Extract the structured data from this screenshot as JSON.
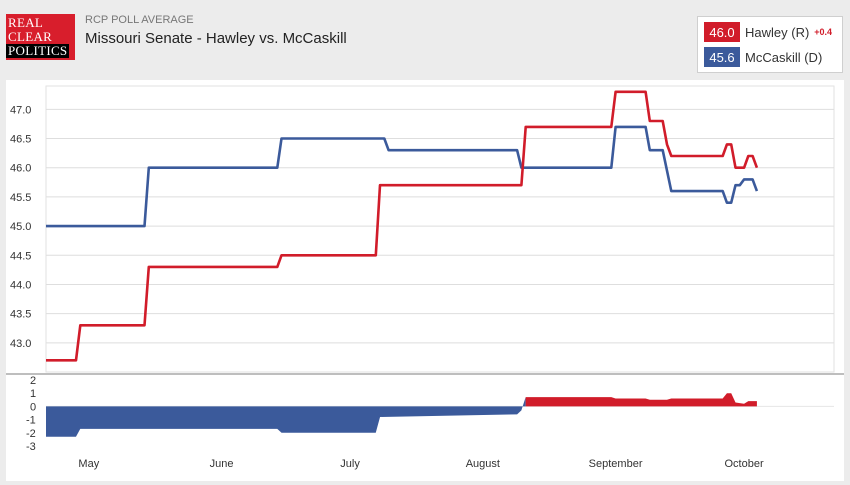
{
  "header": {
    "logo_lines": [
      "REAL",
      "CLEAR",
      "POLITICS"
    ],
    "kicker": "RCP POLL AVERAGE",
    "title": "Missouri Senate - Hawley vs. McCaskill"
  },
  "legend": {
    "items": [
      {
        "value": "46.0",
        "name": "Hawley (R)",
        "change": "+0.4",
        "color": "#d11c2a"
      },
      {
        "value": "45.6",
        "name": "McCaskill (D)",
        "change": "",
        "color": "#3b5a9b"
      }
    ]
  },
  "chart_data": [
    {
      "type": "line",
      "title": "",
      "x_unit": "date (2018)",
      "xlim": [
        "2018-04-21",
        "2018-10-22"
      ],
      "ylim": [
        42.5,
        47.4
      ],
      "y_ticks": [
        "43.0",
        "43.5",
        "44.0",
        "44.5",
        "45.0",
        "45.5",
        "46.0",
        "46.5",
        "47.0"
      ],
      "x_ticks": [
        {
          "label": "May",
          "date": "2018-05-01"
        },
        {
          "label": "June",
          "date": "2018-06-01"
        },
        {
          "label": "July",
          "date": "2018-07-01"
        },
        {
          "label": "August",
          "date": "2018-08-01"
        },
        {
          "label": "September",
          "date": "2018-09-01"
        },
        {
          "label": "October",
          "date": "2018-10-01"
        }
      ],
      "grid": true,
      "series": [
        {
          "name": "Hawley (R)",
          "color": "#d11c2a",
          "points": [
            [
              "2018-04-21",
              42.7
            ],
            [
              "2018-04-28",
              42.7
            ],
            [
              "2018-04-29",
              43.3
            ],
            [
              "2018-05-14",
              43.3
            ],
            [
              "2018-05-15",
              44.3
            ],
            [
              "2018-06-14",
              44.3
            ],
            [
              "2018-06-15",
              44.5
            ],
            [
              "2018-07-07",
              44.5
            ],
            [
              "2018-07-08",
              45.7
            ],
            [
              "2018-08-10",
              45.7
            ],
            [
              "2018-08-11",
              46.7
            ],
            [
              "2018-08-31",
              46.7
            ],
            [
              "2018-09-01",
              47.3
            ],
            [
              "2018-09-08",
              47.3
            ],
            [
              "2018-09-09",
              46.8
            ],
            [
              "2018-09-12",
              46.8
            ],
            [
              "2018-09-13",
              46.4
            ],
            [
              "2018-09-14",
              46.2
            ],
            [
              "2018-09-26",
              46.2
            ],
            [
              "2018-09-27",
              46.4
            ],
            [
              "2018-09-28",
              46.4
            ],
            [
              "2018-09-29",
              46.0
            ],
            [
              "2018-10-01",
              46.0
            ],
            [
              "2018-10-02",
              46.2
            ],
            [
              "2018-10-03",
              46.2
            ],
            [
              "2018-10-04",
              46.0
            ]
          ]
        },
        {
          "name": "McCaskill (D)",
          "color": "#3b5a9b",
          "points": [
            [
              "2018-04-21",
              45.0
            ],
            [
              "2018-05-14",
              45.0
            ],
            [
              "2018-05-15",
              46.0
            ],
            [
              "2018-06-14",
              46.0
            ],
            [
              "2018-06-15",
              46.5
            ],
            [
              "2018-07-09",
              46.5
            ],
            [
              "2018-07-10",
              46.3
            ],
            [
              "2018-08-09",
              46.3
            ],
            [
              "2018-08-10",
              46.0
            ],
            [
              "2018-08-31",
              46.0
            ],
            [
              "2018-09-01",
              46.7
            ],
            [
              "2018-09-08",
              46.7
            ],
            [
              "2018-09-09",
              46.3
            ],
            [
              "2018-09-12",
              46.3
            ],
            [
              "2018-09-14",
              45.6
            ],
            [
              "2018-09-26",
              45.6
            ],
            [
              "2018-09-27",
              45.4
            ],
            [
              "2018-09-28",
              45.4
            ],
            [
              "2018-09-29",
              45.7
            ],
            [
              "2018-09-30",
              45.7
            ],
            [
              "2018-10-01",
              45.8
            ],
            [
              "2018-10-03",
              45.8
            ],
            [
              "2018-10-04",
              45.6
            ]
          ]
        }
      ]
    },
    {
      "type": "area",
      "title": "",
      "description": "spread (Hawley minus McCaskill)",
      "ylim": [
        -3,
        2
      ],
      "y_ticks": [
        "2",
        "1",
        "0",
        "-1",
        "-2",
        "-3"
      ],
      "series": [
        {
          "name": "spread",
          "positive_color": "#d11c2a",
          "negative_color": "#3b5a9b",
          "points": [
            [
              "2018-04-21",
              -2.3
            ],
            [
              "2018-04-28",
              -2.3
            ],
            [
              "2018-04-29",
              -1.7
            ],
            [
              "2018-05-14",
              -1.7
            ],
            [
              "2018-05-15",
              -1.7
            ],
            [
              "2018-06-14",
              -1.7
            ],
            [
              "2018-06-15",
              -2.0
            ],
            [
              "2018-07-07",
              -2.0
            ],
            [
              "2018-07-08",
              -0.8
            ],
            [
              "2018-08-09",
              -0.6
            ],
            [
              "2018-08-10",
              -0.3
            ],
            [
              "2018-08-11",
              0.7
            ],
            [
              "2018-08-31",
              0.7
            ],
            [
              "2018-09-01",
              0.6
            ],
            [
              "2018-09-08",
              0.6
            ],
            [
              "2018-09-09",
              0.5
            ],
            [
              "2018-09-13",
              0.5
            ],
            [
              "2018-09-14",
              0.6
            ],
            [
              "2018-09-26",
              0.6
            ],
            [
              "2018-09-27",
              1.0
            ],
            [
              "2018-09-28",
              1.0
            ],
            [
              "2018-09-29",
              0.3
            ],
            [
              "2018-10-01",
              0.2
            ],
            [
              "2018-10-02",
              0.4
            ],
            [
              "2018-10-04",
              0.4
            ]
          ]
        }
      ]
    }
  ]
}
